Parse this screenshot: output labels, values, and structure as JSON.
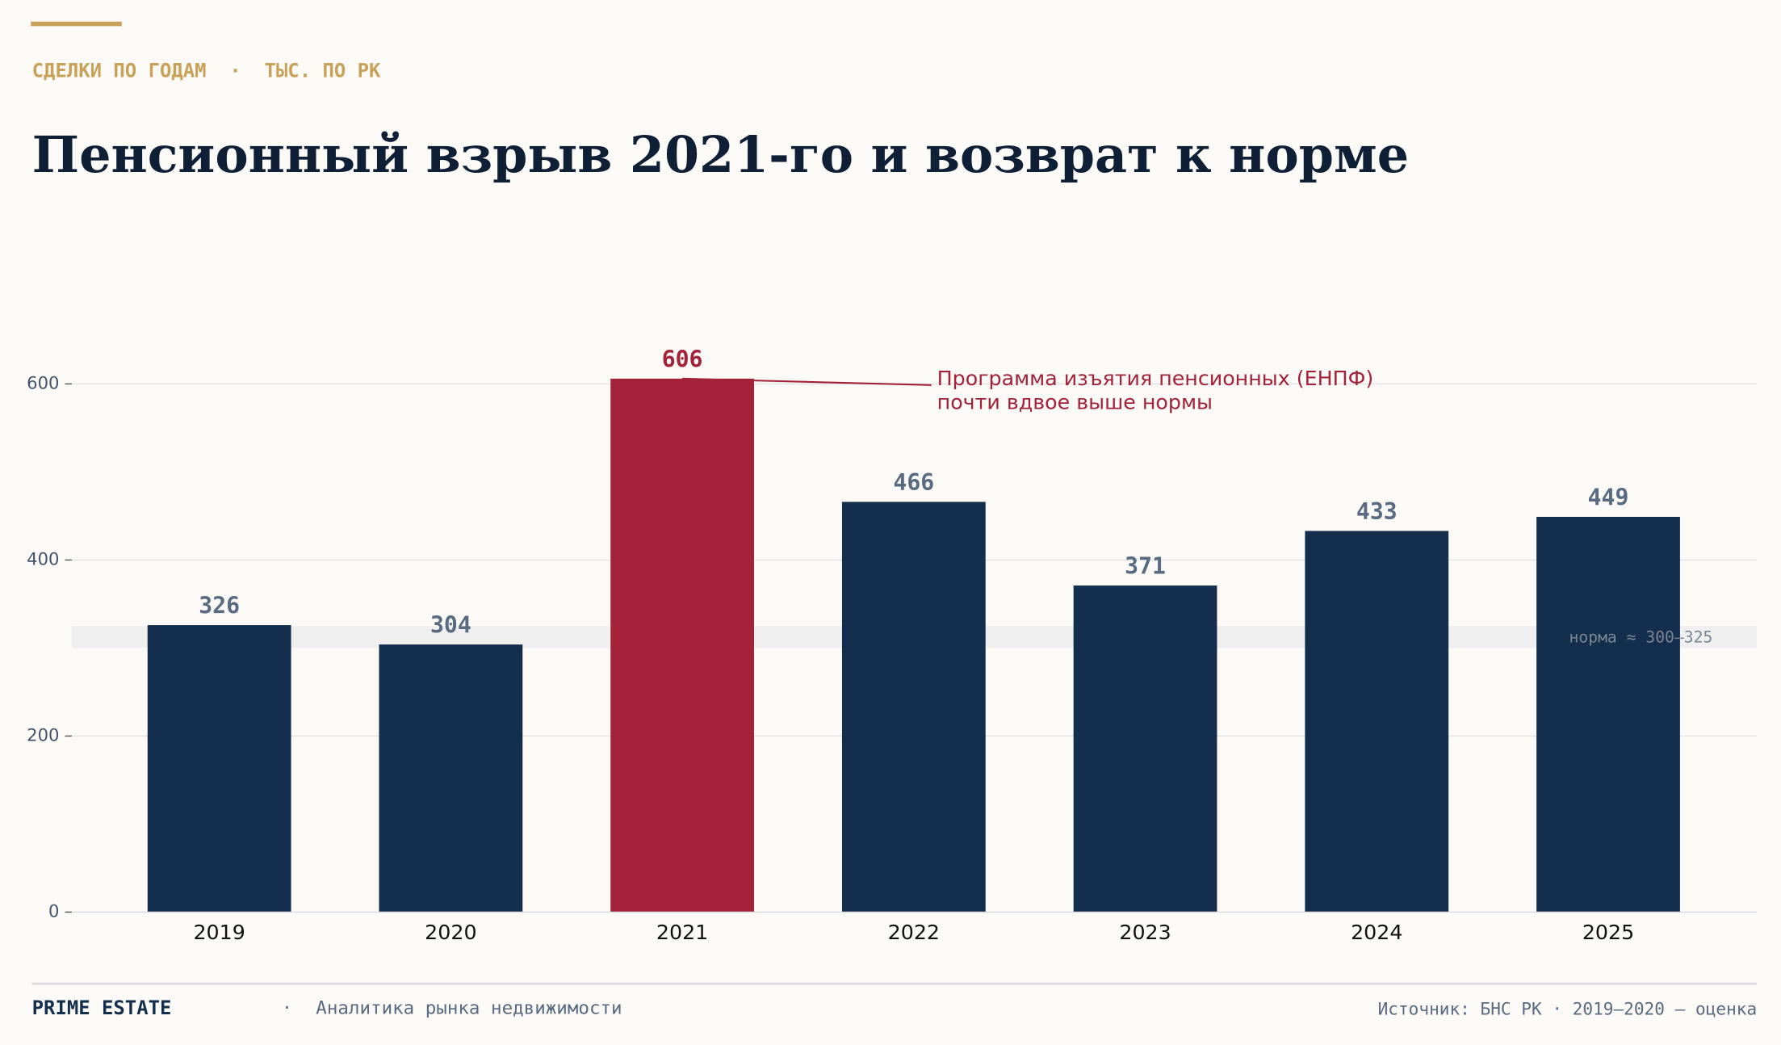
{
  "chart_data": {
    "type": "bar",
    "kicker": "СДЕЛКИ ПО ГОДАМ  ·  ТЫС. ПО РК",
    "title": "Пенсионный взрыв 2021-го и возврат к норме",
    "categories": [
      "2019",
      "2020",
      "2021",
      "2022",
      "2023",
      "2024",
      "2025"
    ],
    "values": [
      326,
      304,
      606,
      466,
      371,
      433,
      449
    ],
    "colors": [
      "#142f4e",
      "#142f4e",
      "#a3223a",
      "#142f4e",
      "#142f4e",
      "#142f4e",
      "#142f4e"
    ],
    "label_colors": [
      "#5a6a80",
      "#5a6a80",
      "#a3223a",
      "#5a6a80",
      "#5a6a80",
      "#5a6a80",
      "#5a6a80"
    ],
    "ylim": [
      0,
      700
    ],
    "yticks": [
      0,
      200,
      400,
      600
    ],
    "grid": true,
    "band": {
      "range": [
        300,
        325
      ],
      "label": "норма ≈ 300–325"
    },
    "annotation": {
      "index": 2,
      "lines": [
        "Программа изъятия пенсионных (ЕНПФ)",
        "почти вдвое выше нормы"
      ]
    },
    "footer": {
      "brand": "PRIME ESTATE",
      "separator": "·",
      "tagline": "Аналитика рынка недвижимости",
      "source": "Источник: БНС РК · 2019–2020 — оценка"
    }
  }
}
